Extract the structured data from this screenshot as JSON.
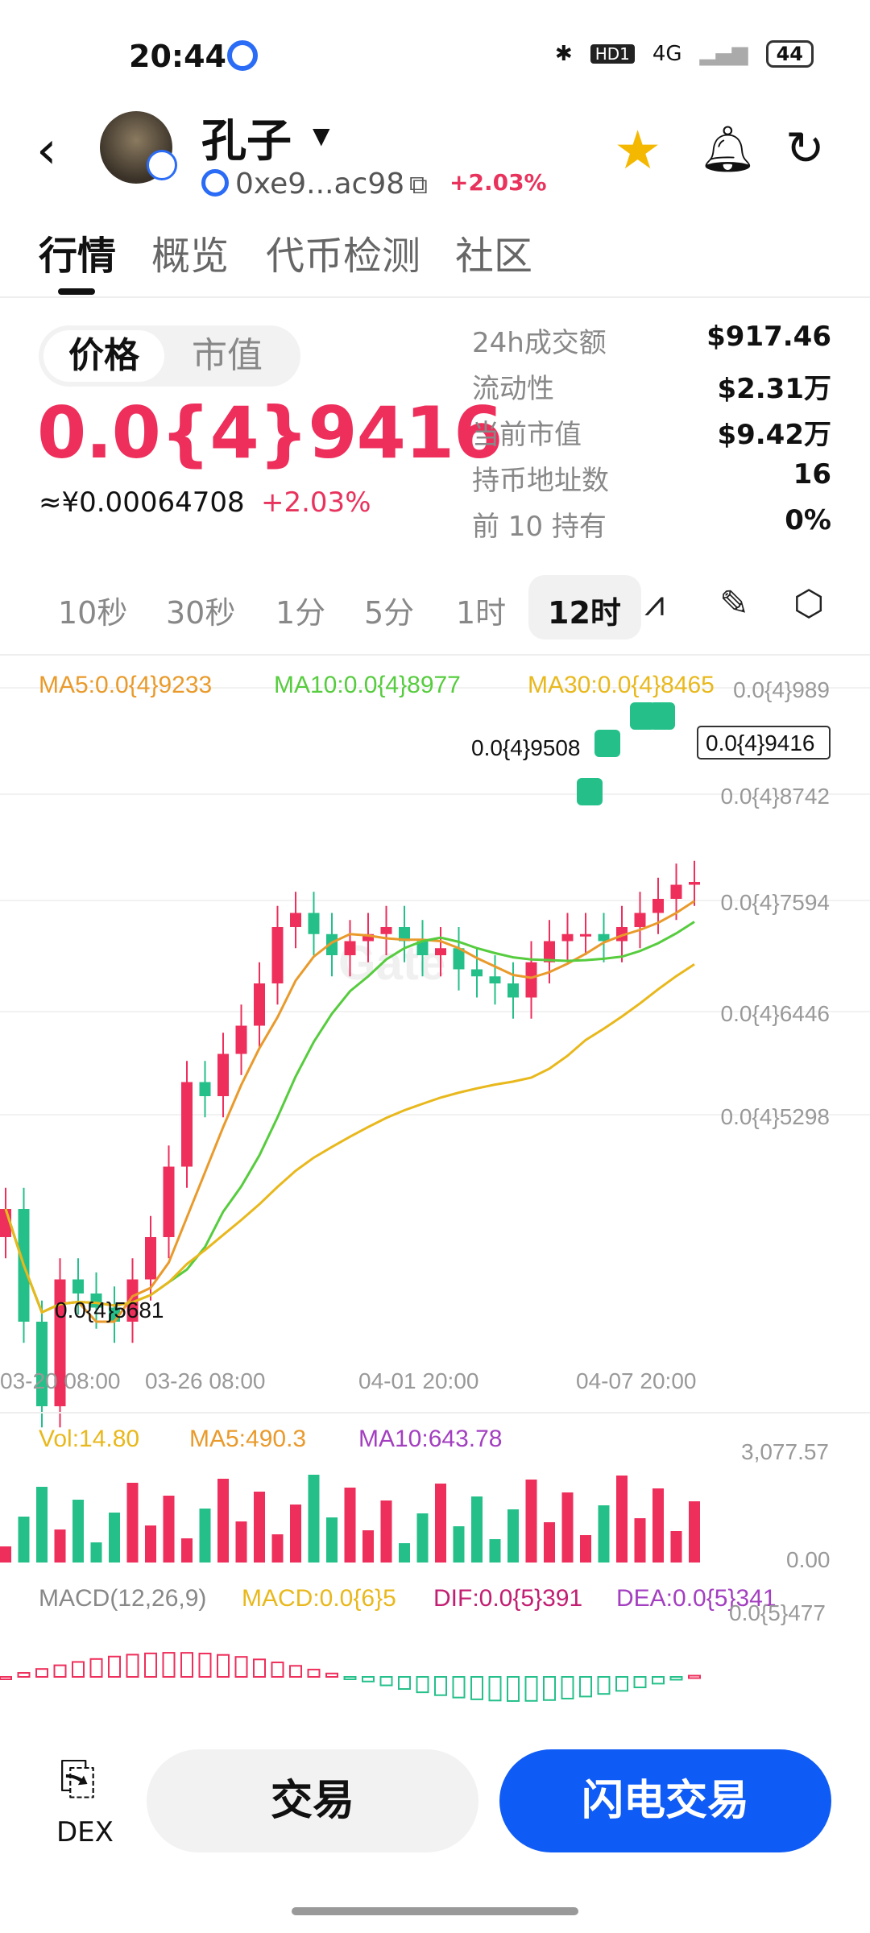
{
  "status": {
    "time": "20:44",
    "net": "4G",
    "hd": "HD1",
    "battery": "44"
  },
  "header": {
    "name": "孔子",
    "address": "0xe9...ac98",
    "change": "+2.03%"
  },
  "tabs": [
    "行情",
    "概览",
    "代币检测",
    "社区"
  ],
  "price_toggle": {
    "selected": "价格",
    "other": "市值"
  },
  "price": {
    "value": "0.0{4}9416",
    "cny": "≈¥0.00064708",
    "change": "+2.03%"
  },
  "stats": [
    {
      "label": "24h成交额",
      "value": "$917.46"
    },
    {
      "label": "流动性",
      "value": "$2.31万"
    },
    {
      "label": "当前市值",
      "value": "$9.42万"
    },
    {
      "label": "持币地址数",
      "value": "16"
    },
    {
      "label": "前 10 持有",
      "value": "0%"
    }
  ],
  "timeframes": [
    "10秒",
    "30秒",
    "1分",
    "5分",
    "1时",
    "12时"
  ],
  "active_timeframe": "12时",
  "colors": {
    "up": "#ee2e5b",
    "down": "#25c08a",
    "ma5": "#e99a2b",
    "ma10": "#56cc3e",
    "ma30": "#e8b81c",
    "accent": "#0f5bf5"
  },
  "chart_data": {
    "type": "candlestick",
    "ma_labels": {
      "ma5": "MA5:0.0{4}9233",
      "ma10": "MA10:0.0{4}8977",
      "ma30": "MA30:0.0{4}8465"
    },
    "y_ticks": [
      "0.0{4}989",
      "0.0{4}8742",
      "0.0{4}7594",
      "0.0{4}6446",
      "0.0{4}5298"
    ],
    "y_values": [
      9.89e-05,
      8.742e-05,
      7.594e-05,
      6.446e-05,
      5.298e-05
    ],
    "x_ticks": [
      "03-20 08:00",
      "03-26 08:00",
      "04-01 20:00",
      "04-07 20:00"
    ],
    "last_price_label": "0.0{4}9416",
    "high_label": "0.0{4}9508",
    "low_label": "0.0{4}5681",
    "closes": [
      7.1,
      6.3,
      5.7,
      6.6,
      6.5,
      6.4,
      6.3,
      6.6,
      6.9,
      7.4,
      8.0,
      7.9,
      8.2,
      8.4,
      8.7,
      9.1,
      9.2,
      9.05,
      8.9,
      9.0,
      9.05,
      9.1,
      9.0,
      8.9,
      8.95,
      8.8,
      8.75,
      8.7,
      8.6,
      8.85,
      9.0,
      9.05,
      9.05,
      9.0,
      9.1,
      9.2,
      9.3,
      9.4,
      9.42
    ],
    "volume": {
      "vol_label": "Vol:14.80",
      "ma5_label": "MA5:490.3",
      "ma10_label": "MA10:643.78",
      "y_ticks": [
        "3,077.57",
        "0.00"
      ]
    },
    "macd": {
      "params": "MACD(12,26,9)",
      "macd_label": "MACD:0.0{6}5",
      "dif_label": "DIF:0.0{5}391",
      "dea_label": "DEA:0.0{5}341",
      "y_tick": "0.0{5}477"
    }
  },
  "bottom": {
    "dex": "DEX",
    "trade": "交易",
    "flash": "闪电交易"
  }
}
